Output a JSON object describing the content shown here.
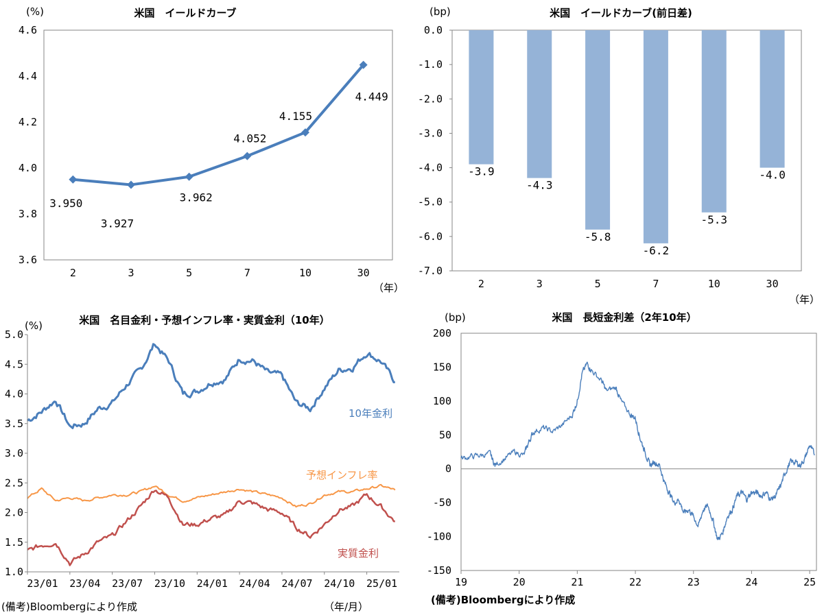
{
  "chart_data": [
    {
      "type": "line",
      "title": "米国　イールドカーブ",
      "ylabel": "(%)",
      "xunit": "（年）",
      "categories": [
        "2",
        "3",
        "5",
        "7",
        "10",
        "30"
      ],
      "values": [
        3.95,
        3.927,
        3.962,
        4.052,
        4.155,
        4.449
      ],
      "data_labels": [
        "3.950",
        "3.927",
        "3.962",
        "4.052",
        "4.155",
        "4.449"
      ],
      "ylim": [
        3.6,
        4.6
      ],
      "yticks": [
        "3.6",
        "3.8",
        "4.0",
        "4.2",
        "4.4",
        "4.6"
      ],
      "color": "#4A7EBB",
      "grid": false
    },
    {
      "type": "bar",
      "title": "米国　イールドカーブ(前日差)",
      "ylabel": "(bp)",
      "xunit": "（年）",
      "categories": [
        "2",
        "3",
        "5",
        "7",
        "10",
        "30"
      ],
      "values": [
        -3.9,
        -4.3,
        -5.8,
        -6.2,
        -5.3,
        -4.0
      ],
      "data_labels": [
        "-3.9",
        "-4.3",
        "-5.8",
        "-6.2",
        "-5.3",
        "-4.0"
      ],
      "ylim": [
        -7.0,
        0.0
      ],
      "yticks": [
        "0.0",
        "-1.0",
        "-2.0",
        "-3.0",
        "-4.0",
        "-5.0",
        "-6.0",
        "-7.0"
      ],
      "color": "#95B3D7",
      "grid": false
    },
    {
      "type": "line",
      "title": "米国　名目金利・予想インフレ率・実質金利（10年）",
      "ylabel": "(%)",
      "xunit": "（年/月）",
      "ylim": [
        1.0,
        5.0
      ],
      "yticks": [
        "1.0",
        "1.5",
        "2.0",
        "2.5",
        "3.0",
        "3.5",
        "4.0",
        "4.5",
        "5.0"
      ],
      "xticks": [
        "23/01",
        "23/04",
        "23/07",
        "23/10",
        "24/01",
        "24/04",
        "24/07",
        "24/10",
        "25/01"
      ],
      "series": [
        {
          "name": "10年金利",
          "color": "#4A7EBB",
          "x": [
            "2023-01",
            "2023-02",
            "2023-03",
            "2023-04",
            "2023-05",
            "2023-06",
            "2023-07",
            "2023-08",
            "2023-09",
            "2023-10",
            "2023-11",
            "2023-12",
            "2024-01",
            "2024-02",
            "2024-03",
            "2024-04",
            "2024-05",
            "2024-06",
            "2024-07",
            "2024-08",
            "2024-09",
            "2024-10",
            "2024-11",
            "2024-12",
            "2025-01",
            "2025-02",
            "2025-03"
          ],
          "values": [
            3.55,
            3.7,
            3.9,
            3.45,
            3.5,
            3.75,
            3.85,
            4.15,
            4.4,
            4.85,
            4.55,
            4.0,
            4.05,
            4.2,
            4.25,
            4.6,
            4.55,
            4.35,
            4.3,
            3.85,
            3.75,
            4.1,
            4.4,
            4.45,
            4.7,
            4.55,
            4.2
          ]
        },
        {
          "name": "予想インフレ率",
          "color": "#F79646",
          "x": [
            "2023-01",
            "2023-02",
            "2023-03",
            "2023-04",
            "2023-05",
            "2023-06",
            "2023-07",
            "2023-08",
            "2023-09",
            "2023-10",
            "2023-11",
            "2023-12",
            "2024-01",
            "2024-02",
            "2024-03",
            "2024-04",
            "2024-05",
            "2024-06",
            "2024-07",
            "2024-08",
            "2024-09",
            "2024-10",
            "2024-11",
            "2024-12",
            "2025-01",
            "2025-02",
            "2025-03"
          ],
          "values": [
            2.25,
            2.4,
            2.2,
            2.25,
            2.2,
            2.25,
            2.3,
            2.3,
            2.35,
            2.45,
            2.3,
            2.2,
            2.25,
            2.3,
            2.35,
            2.4,
            2.35,
            2.3,
            2.25,
            2.1,
            2.15,
            2.3,
            2.35,
            2.35,
            2.4,
            2.45,
            2.38
          ]
        },
        {
          "name": "実質金利",
          "color": "#C0504D",
          "x": [
            "2023-01",
            "2023-02",
            "2023-03",
            "2023-04",
            "2023-05",
            "2023-06",
            "2023-07",
            "2023-08",
            "2023-09",
            "2023-10",
            "2023-11",
            "2023-12",
            "2024-01",
            "2024-02",
            "2024-03",
            "2024-04",
            "2024-05",
            "2024-06",
            "2024-07",
            "2024-08",
            "2024-09",
            "2024-10",
            "2024-11",
            "2024-12",
            "2025-01",
            "2025-02",
            "2025-03"
          ],
          "values": [
            1.35,
            1.45,
            1.5,
            1.15,
            1.3,
            1.5,
            1.6,
            1.85,
            2.1,
            2.4,
            2.25,
            1.8,
            1.8,
            1.9,
            1.95,
            2.2,
            2.15,
            2.05,
            2.0,
            1.75,
            1.6,
            1.8,
            2.05,
            2.1,
            2.3,
            2.1,
            1.85
          ]
        }
      ]
    },
    {
      "type": "line",
      "title": "米国　長短金利差（2年10年）",
      "ylabel": "(bp)",
      "ylim": [
        -150,
        200
      ],
      "yticks": [
        "-150",
        "-100",
        "-50",
        "0",
        "50",
        "100",
        "150",
        "200"
      ],
      "xticks": [
        "19",
        "20",
        "21",
        "22",
        "23",
        "24",
        "25"
      ],
      "series": [
        {
          "color": "#4A7EBB",
          "x": [
            "2019-01",
            "2019-03",
            "2019-05",
            "2019-07",
            "2019-08",
            "2019-10",
            "2019-12",
            "2020-02",
            "2020-03",
            "2020-04",
            "2020-06",
            "2020-08",
            "2020-10",
            "2020-12",
            "2021-01",
            "2021-02",
            "2021-03",
            "2021-04",
            "2021-06",
            "2021-07",
            "2021-09",
            "2021-10",
            "2021-12",
            "2022-01",
            "2022-02",
            "2022-03",
            "2022-04",
            "2022-05",
            "2022-06",
            "2022-07",
            "2022-08",
            "2022-09",
            "2022-10",
            "2022-11",
            "2022-12",
            "2023-01",
            "2023-02",
            "2023-03",
            "2023-04",
            "2023-05",
            "2023-06",
            "2023-07",
            "2023-08",
            "2023-09",
            "2023-10",
            "2023-11",
            "2023-12",
            "2024-01",
            "2024-02",
            "2024-03",
            "2024-04",
            "2024-05",
            "2024-06",
            "2024-07",
            "2024-08",
            "2024-09",
            "2024-10",
            "2024-11",
            "2024-12",
            "2025-01",
            "2025-02"
          ],
          "values": [
            15,
            18,
            20,
            22,
            5,
            15,
            25,
            20,
            40,
            55,
            60,
            55,
            65,
            80,
            100,
            140,
            155,
            145,
            130,
            115,
            120,
            100,
            80,
            75,
            45,
            25,
            5,
            10,
            5,
            -20,
            -35,
            -50,
            -45,
            -65,
            -60,
            -70,
            -85,
            -60,
            -55,
            -75,
            -105,
            -95,
            -70,
            -60,
            -40,
            -35,
            -45,
            -35,
            -35,
            -40,
            -35,
            -45,
            -40,
            -25,
            -5,
            10,
            10,
            5,
            15,
            35,
            20
          ]
        }
      ]
    }
  ],
  "footnotes": {
    "left": "(備考)Bloombergにより作成",
    "right": "(備考)Bloombergにより作成"
  },
  "legend_labels": {
    "nominal": "10年金利",
    "inflation": "予想インフレ率",
    "real": "実質金利"
  }
}
